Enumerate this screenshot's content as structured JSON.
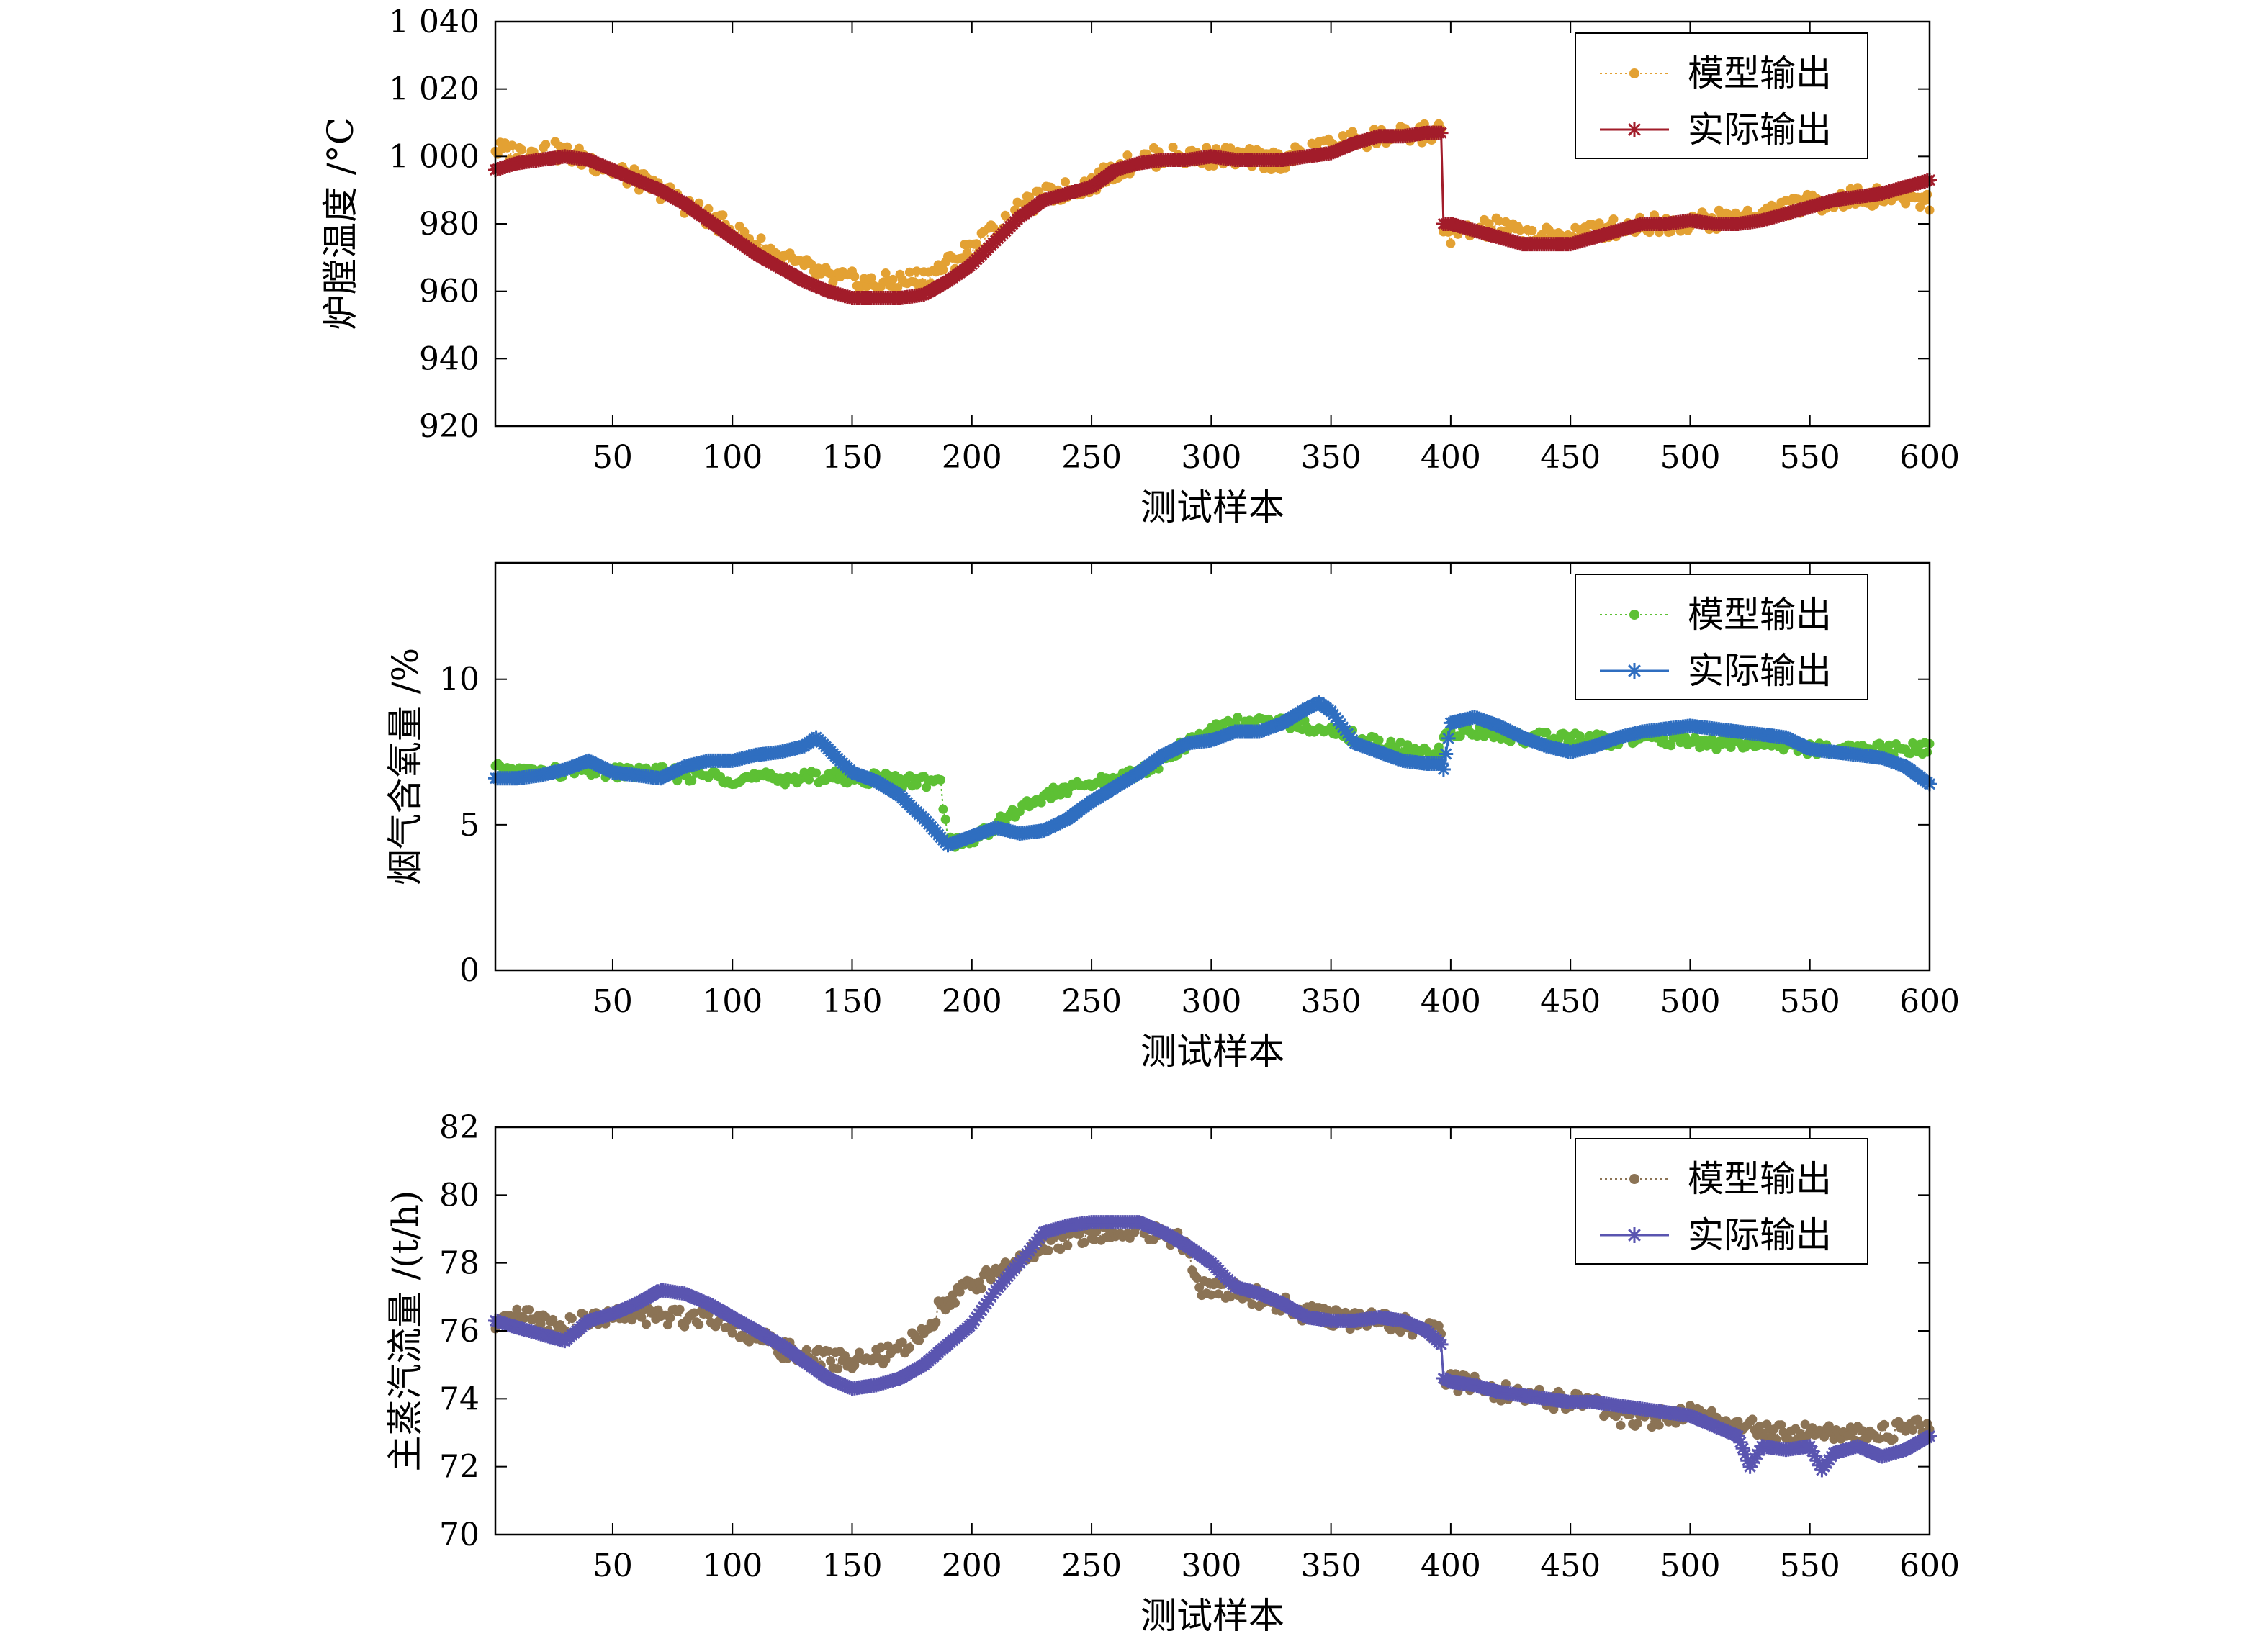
{
  "chart_data": [
    {
      "type": "line",
      "ylabel": "炉膛温度 /°C",
      "xlabel": "测试样本",
      "xlim": [
        1,
        600
      ],
      "ylim": [
        920,
        1040
      ],
      "xticks": [
        50,
        100,
        150,
        200,
        250,
        300,
        350,
        400,
        450,
        500,
        550,
        600
      ],
      "xtick_labels": [
        "50",
        "100",
        "150",
        "200",
        "250",
        "300",
        "350",
        "400",
        "450",
        "500",
        "550",
        "600"
      ],
      "yticks": [
        920,
        940,
        960,
        980,
        1000,
        1020,
        1040
      ],
      "ytick_labels": [
        "920",
        "940",
        "960",
        "980",
        "1 000",
        "1 020",
        "1 040"
      ],
      "legend_position": "top-right",
      "grid": false,
      "series": [
        {
          "name": "模型输出",
          "color": "#E3A133",
          "style": "dotted line with filled circle markers",
          "x": [
            1,
            10,
            20,
            30,
            40,
            50,
            60,
            70,
            80,
            90,
            100,
            110,
            120,
            130,
            140,
            150,
            160,
            170,
            180,
            190,
            200,
            210,
            220,
            230,
            240,
            250,
            260,
            270,
            280,
            290,
            300,
            310,
            320,
            330,
            340,
            350,
            360,
            370,
            380,
            390,
            396,
            397,
            400,
            410,
            420,
            430,
            440,
            450,
            460,
            470,
            480,
            490,
            500,
            510,
            520,
            530,
            540,
            550,
            560,
            570,
            580,
            590,
            600
          ],
          "y": [
            1002,
            1001,
            1002,
            1001,
            999,
            996,
            993,
            990,
            986,
            982,
            978,
            974,
            970,
            967,
            964,
            963,
            962,
            963,
            964,
            968,
            973,
            978,
            984,
            988,
            990,
            992,
            996,
            999,
            1000,
            1000,
            1000,
            1000,
            999,
            999,
            1001,
            1003,
            1005,
            1006,
            1006,
            1007,
            1007,
            978,
            977,
            978,
            979,
            977,
            976,
            977,
            978,
            979,
            980,
            980,
            981,
            981,
            982,
            983,
            985,
            986,
            987,
            988,
            988,
            988,
            987
          ]
        },
        {
          "name": "实际输出",
          "color": "#A21C2A",
          "style": "solid line with asterisk markers",
          "x": [
            1,
            10,
            20,
            30,
            40,
            50,
            60,
            70,
            80,
            90,
            100,
            110,
            120,
            130,
            140,
            150,
            160,
            170,
            180,
            190,
            200,
            210,
            220,
            230,
            240,
            250,
            260,
            270,
            280,
            290,
            300,
            310,
            320,
            330,
            340,
            350,
            360,
            370,
            380,
            390,
            396,
            397,
            400,
            410,
            420,
            430,
            440,
            450,
            460,
            470,
            480,
            490,
            500,
            510,
            520,
            530,
            540,
            550,
            560,
            570,
            580,
            590,
            600
          ],
          "y": [
            996,
            998,
            999,
            1000,
            999,
            996,
            993,
            990,
            986,
            981,
            976,
            971,
            967,
            963,
            960,
            958,
            958,
            958,
            959,
            963,
            968,
            975,
            982,
            987,
            989,
            991,
            996,
            998,
            999,
            999,
            1000,
            999,
            999,
            999,
            1000,
            1001,
            1004,
            1006,
            1006,
            1007,
            1007,
            980,
            980,
            978,
            976,
            974,
            974,
            974,
            976,
            978,
            980,
            980,
            981,
            980,
            980,
            981,
            983,
            985,
            987,
            988,
            989,
            991,
            993
          ]
        }
      ]
    },
    {
      "type": "line",
      "ylabel": "烟气含氧量 /%",
      "xlabel": "测试样本",
      "xlim": [
        1,
        600
      ],
      "ylim": [
        0,
        14
      ],
      "xticks": [
        50,
        100,
        150,
        200,
        250,
        300,
        350,
        400,
        450,
        500,
        550,
        600
      ],
      "xtick_labels": [
        "50",
        "100",
        "150",
        "200",
        "250",
        "300",
        "350",
        "400",
        "450",
        "500",
        "550",
        "600"
      ],
      "yticks": [
        0,
        5,
        10
      ],
      "ytick_labels": [
        "0",
        "5",
        "10"
      ],
      "legend_position": "top-right",
      "grid": false,
      "series": [
        {
          "name": "模型输出",
          "color": "#5DC034",
          "style": "dotted line with filled circle markers",
          "x": [
            1,
            10,
            20,
            30,
            40,
            50,
            60,
            70,
            80,
            90,
            100,
            110,
            120,
            130,
            140,
            150,
            160,
            170,
            180,
            187,
            190,
            200,
            210,
            220,
            230,
            240,
            250,
            260,
            270,
            280,
            290,
            300,
            310,
            320,
            330,
            340,
            350,
            360,
            370,
            380,
            390,
            396,
            397,
            400,
            410,
            420,
            430,
            440,
            450,
            460,
            470,
            480,
            490,
            500,
            510,
            520,
            530,
            540,
            550,
            560,
            570,
            580,
            590,
            600
          ],
          "y": [
            6.9,
            6.8,
            6.8,
            6.8,
            6.9,
            6.8,
            6.8,
            6.8,
            6.7,
            6.7,
            6.6,
            6.6,
            6.6,
            6.6,
            6.7,
            6.6,
            6.6,
            6.5,
            6.5,
            6.4,
            4.4,
            4.5,
            5.0,
            5.5,
            6.0,
            6.2,
            6.4,
            6.6,
            6.8,
            7.2,
            7.8,
            8.3,
            8.5,
            8.5,
            8.5,
            8.4,
            8.3,
            8.0,
            7.8,
            7.6,
            7.4,
            7.5,
            8.1,
            8.2,
            8.2,
            8.1,
            8.0,
            8.0,
            8.0,
            7.9,
            7.9,
            8.0,
            7.9,
            7.9,
            7.8,
            7.8,
            7.8,
            7.7,
            7.6,
            7.6,
            7.6,
            7.6,
            7.6,
            7.6
          ]
        },
        {
          "name": "实际输出",
          "color": "#2F6EC0",
          "style": "solid line with asterisk markers",
          "x": [
            1,
            10,
            20,
            30,
            40,
            50,
            60,
            70,
            80,
            90,
            100,
            110,
            120,
            130,
            135,
            140,
            150,
            160,
            170,
            180,
            190,
            200,
            210,
            220,
            230,
            240,
            250,
            260,
            270,
            280,
            290,
            300,
            310,
            320,
            330,
            340,
            345,
            350,
            360,
            370,
            380,
            390,
            396,
            397,
            400,
            410,
            420,
            430,
            440,
            450,
            460,
            470,
            480,
            490,
            500,
            510,
            520,
            530,
            540,
            550,
            560,
            570,
            580,
            590,
            600
          ],
          "y": [
            6.6,
            6.6,
            6.7,
            6.9,
            7.2,
            6.8,
            6.7,
            6.6,
            7.0,
            7.2,
            7.2,
            7.4,
            7.5,
            7.7,
            8.0,
            7.6,
            6.8,
            6.5,
            6.0,
            5.2,
            4.3,
            4.6,
            4.9,
            4.7,
            4.8,
            5.2,
            5.8,
            6.3,
            6.8,
            7.4,
            7.8,
            7.9,
            8.2,
            8.2,
            8.5,
            9.0,
            9.2,
            8.9,
            7.8,
            7.5,
            7.2,
            7.1,
            7.1,
            6.9,
            8.5,
            8.7,
            8.4,
            8.0,
            7.7,
            7.5,
            7.7,
            8.0,
            8.2,
            8.3,
            8.4,
            8.3,
            8.2,
            8.1,
            8.0,
            7.6,
            7.5,
            7.4,
            7.3,
            7.0,
            6.4
          ]
        }
      ]
    },
    {
      "type": "line",
      "ylabel": "主蒸汽流量 /(t/h)",
      "xlabel": "测试样本",
      "xlim": [
        1,
        600
      ],
      "ylim": [
        70,
        82
      ],
      "xticks": [
        50,
        100,
        150,
        200,
        250,
        300,
        350,
        400,
        450,
        500,
        550,
        600
      ],
      "xtick_labels": [
        "50",
        "100",
        "150",
        "200",
        "250",
        "300",
        "350",
        "400",
        "450",
        "500",
        "550",
        "600"
      ],
      "yticks": [
        70,
        72,
        74,
        76,
        78,
        80,
        82
      ],
      "ytick_labels": [
        "70",
        "72",
        "74",
        "76",
        "78",
        "80",
        "82"
      ],
      "legend_position": "top-right",
      "grid": false,
      "series": [
        {
          "name": "模型输出",
          "color": "#8B7355",
          "style": "dotted line with filled circle markers",
          "x": [
            1,
            10,
            20,
            30,
            40,
            50,
            60,
            70,
            80,
            90,
            100,
            110,
            120,
            130,
            140,
            150,
            160,
            170,
            180,
            190,
            200,
            210,
            220,
            230,
            240,
            250,
            260,
            270,
            280,
            290,
            295,
            300,
            310,
            320,
            330,
            340,
            350,
            360,
            370,
            380,
            390,
            396,
            397,
            400,
            410,
            420,
            430,
            440,
            450,
            460,
            470,
            480,
            490,
            500,
            510,
            520,
            530,
            540,
            550,
            560,
            570,
            580,
            590,
            600
          ],
          "y": [
            76.0,
            76.4,
            76.3,
            76.1,
            76.3,
            76.4,
            76.5,
            76.4,
            76.4,
            76.5,
            76.2,
            75.8,
            75.5,
            75.2,
            75.2,
            75.1,
            75.2,
            75.4,
            76.0,
            77.0,
            77.3,
            77.8,
            78.0,
            78.5,
            78.7,
            78.8,
            78.9,
            79.0,
            78.9,
            78.5,
            77.2,
            77.3,
            77.2,
            77.0,
            76.8,
            76.5,
            76.4,
            76.3,
            76.4,
            76.2,
            76.0,
            76.1,
            74.7,
            74.5,
            74.4,
            74.2,
            74.1,
            74.0,
            73.9,
            73.8,
            73.5,
            73.4,
            73.5,
            73.6,
            73.4,
            73.2,
            73.1,
            73.0,
            73.0,
            73.0,
            73.0,
            73.0,
            73.1,
            73.2
          ]
        },
        {
          "name": "实际输出",
          "color": "#5A55B0",
          "style": "solid line with asterisk markers",
          "x": [
            1,
            10,
            20,
            30,
            40,
            50,
            60,
            70,
            80,
            90,
            100,
            110,
            120,
            130,
            140,
            150,
            160,
            170,
            180,
            190,
            200,
            210,
            220,
            230,
            240,
            250,
            260,
            270,
            280,
            290,
            300,
            310,
            320,
            330,
            340,
            350,
            360,
            370,
            380,
            390,
            396,
            397,
            400,
            410,
            420,
            430,
            440,
            450,
            460,
            470,
            480,
            490,
            500,
            510,
            520,
            525,
            530,
            540,
            550,
            555,
            560,
            570,
            580,
            590,
            600
          ],
          "y": [
            76.3,
            76.1,
            75.9,
            75.7,
            76.3,
            76.5,
            76.8,
            77.2,
            77.1,
            76.8,
            76.4,
            76.0,
            75.6,
            75.1,
            74.6,
            74.3,
            74.4,
            74.6,
            75.0,
            75.6,
            76.2,
            77.2,
            78.0,
            78.9,
            79.1,
            79.2,
            79.2,
            79.2,
            78.9,
            78.5,
            78.0,
            77.3,
            77.1,
            76.8,
            76.4,
            76.3,
            76.3,
            76.4,
            76.3,
            76.0,
            75.6,
            74.6,
            74.5,
            74.4,
            74.2,
            74.1,
            74.0,
            73.9,
            73.9,
            73.8,
            73.7,
            73.6,
            73.5,
            73.2,
            72.9,
            72.0,
            72.6,
            72.5,
            72.6,
            71.9,
            72.4,
            72.6,
            72.3,
            72.5,
            72.9
          ]
        }
      ]
    }
  ]
}
